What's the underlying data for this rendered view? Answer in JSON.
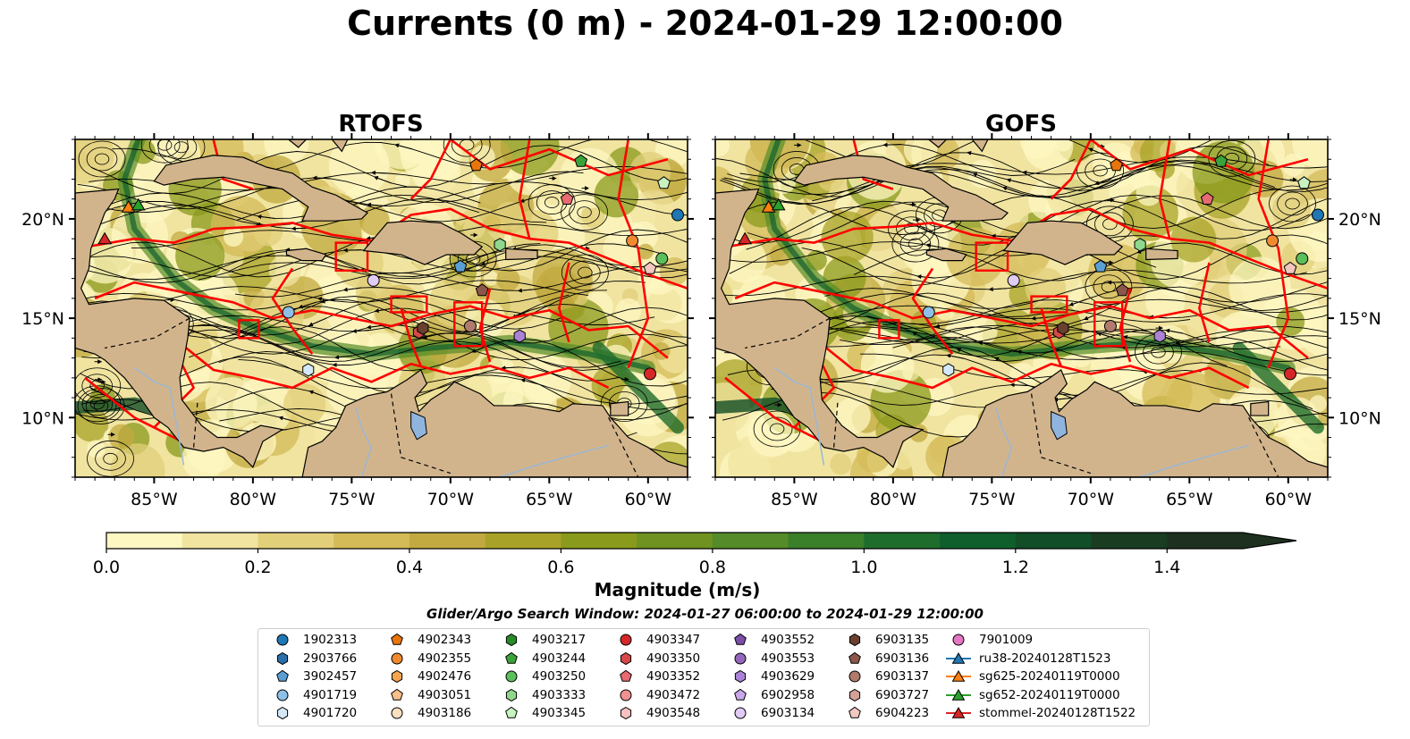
{
  "title": "Currents (0 m) - 2024-01-29 12:00:00",
  "panels": [
    {
      "title": "RTOFS"
    },
    {
      "title": "GOFS"
    }
  ],
  "colors": {
    "land": "#d2b48c",
    "boundary": "#ff0000",
    "streamline": "#000000",
    "lake": "#8fb4de"
  },
  "chart_data": {
    "type": "heatmap",
    "variable": "Current magnitude",
    "depth": "0 m",
    "time": "2024-01-29 12:00:00",
    "longitude_range": [
      -89,
      -58
    ],
    "latitude_range": [
      7,
      24
    ],
    "x_ticks": [
      "85°W",
      "80°W",
      "75°W",
      "70°W",
      "65°W",
      "60°W"
    ],
    "x_tick_values": [
      -85,
      -80,
      -75,
      -70,
      -65,
      -60
    ],
    "y_ticks": [
      "20°N",
      "15°N",
      "10°N"
    ],
    "y_tick_values": [
      20,
      15,
      10
    ],
    "colorbar": {
      "label": "Magnitude (m/s)",
      "range": [
        0.0,
        1.5
      ],
      "extend": "max",
      "ticks": [
        "0.0",
        "0.2",
        "0.4",
        "0.6",
        "0.8",
        "1.0",
        "1.2",
        "1.4"
      ],
      "tick_values": [
        0.0,
        0.2,
        0.4,
        0.6,
        0.8,
        1.0,
        1.2,
        1.4
      ],
      "levels": [
        0,
        0.1,
        0.2,
        0.3,
        0.4,
        0.5,
        0.6,
        0.7,
        0.8,
        0.9,
        1.0,
        1.1,
        1.2,
        1.3,
        1.4,
        1.5
      ],
      "colors": [
        "#fdf7c2",
        "#f0e4a0",
        "#e2cf7a",
        "#d4bb58",
        "#c2aa40",
        "#a8a328",
        "#8a9a1c",
        "#6f9220",
        "#558b28",
        "#3a7f2a",
        "#1f6d2c",
        "#0f5f2c",
        "#124e27",
        "#1a3d22",
        "#1e301f"
      ]
    },
    "search_window": "Glider/Argo Search Window: 2024-01-27 06:00:00 to 2024-01-29 12:00:00",
    "legend": [
      {
        "label": "1902313",
        "marker": "circle",
        "color": "#1f77b4",
        "lon": -58.5,
        "lat": 20.2
      },
      {
        "label": "2903766",
        "marker": "hexagon",
        "color": "#2b6fa8",
        "lon": null,
        "lat": null
      },
      {
        "label": "3902457",
        "marker": "pentagon",
        "color": "#5a9fd4",
        "lon": -69.5,
        "lat": 17.6
      },
      {
        "label": "4901719",
        "marker": "circle",
        "color": "#8ebfe8",
        "lon": -78.2,
        "lat": 15.3
      },
      {
        "label": "4901720",
        "marker": "hexagon",
        "color": "#d4e8f8",
        "lon": -77.2,
        "lat": 12.4
      },
      {
        "label": "4902343",
        "marker": "pentagon",
        "color": "#e8750c",
        "lon": -68.7,
        "lat": 22.7
      },
      {
        "label": "4902355",
        "marker": "circle",
        "color": "#f18a2e",
        "lon": -60.8,
        "lat": 18.9
      },
      {
        "label": "4902476",
        "marker": "hexagon",
        "color": "#f6a550",
        "lon": null,
        "lat": null
      },
      {
        "label": "4903051",
        "marker": "pentagon",
        "color": "#f7c08a",
        "lon": null,
        "lat": null
      },
      {
        "label": "4903186",
        "marker": "circle",
        "color": "#fde0c0",
        "lon": null,
        "lat": null
      },
      {
        "label": "4903217",
        "marker": "hexagon",
        "color": "#2a8a2a",
        "lon": null,
        "lat": null
      },
      {
        "label": "4903244",
        "marker": "pentagon",
        "color": "#3aa33a",
        "lon": -63.4,
        "lat": 22.9
      },
      {
        "label": "4903250",
        "marker": "circle",
        "color": "#5bbf5b",
        "lon": -59.3,
        "lat": 18.0
      },
      {
        "label": "4903333",
        "marker": "hexagon",
        "color": "#8ed88e",
        "lon": -67.5,
        "lat": 18.7
      },
      {
        "label": "4903345",
        "marker": "pentagon",
        "color": "#c8f2c0",
        "lon": -59.2,
        "lat": 21.8
      },
      {
        "label": "4903347",
        "marker": "circle",
        "color": "#d62728",
        "lon": -59.9,
        "lat": 12.2
      },
      {
        "label": "4903350",
        "marker": "hexagon",
        "color": "#d94848",
        "lon": -71.6,
        "lat": 14.3
      },
      {
        "label": "4903352",
        "marker": "pentagon",
        "color": "#e86a72",
        "lon": -64.1,
        "lat": 21.0
      },
      {
        "label": "4903472",
        "marker": "circle",
        "color": "#f09090",
        "lon": null,
        "lat": null
      },
      {
        "label": "4903548",
        "marker": "hexagon",
        "color": "#f8c0c0",
        "lon": null,
        "lat": null
      },
      {
        "label": "4903552",
        "marker": "pentagon",
        "color": "#7b4ea8",
        "lon": null,
        "lat": null
      },
      {
        "label": "4903553",
        "marker": "circle",
        "color": "#9467bd",
        "lon": null,
        "lat": null
      },
      {
        "label": "4903629",
        "marker": "hexagon",
        "color": "#ab82d6",
        "lon": -66.5,
        "lat": 14.1
      },
      {
        "label": "6902958",
        "marker": "pentagon",
        "color": "#c8a8e8",
        "lon": null,
        "lat": null
      },
      {
        "label": "6903134",
        "marker": "circle",
        "color": "#e0ccf4",
        "lon": -73.9,
        "lat": 16.9
      },
      {
        "label": "6903135",
        "marker": "hexagon",
        "color": "#6a4030",
        "lon": -71.4,
        "lat": 14.5
      },
      {
        "label": "6903136",
        "marker": "pentagon",
        "color": "#8c564b",
        "lon": -68.4,
        "lat": 16.4
      },
      {
        "label": "6903137",
        "marker": "circle",
        "color": "#b07a6c",
        "lon": -69.0,
        "lat": 14.6
      },
      {
        "label": "6903727",
        "marker": "hexagon",
        "color": "#d4a098",
        "lon": null,
        "lat": null
      },
      {
        "label": "6904223",
        "marker": "pentagon",
        "color": "#f2c8c0",
        "lon": -59.9,
        "lat": 17.5
      },
      {
        "label": "7901009",
        "marker": "circle",
        "color": "#e377c2",
        "lon": null,
        "lat": null
      },
      {
        "label": "ru38-20240128T1523",
        "marker": "triangle-line",
        "color": "#1f77b4",
        "lon": null,
        "lat": null
      },
      {
        "label": "sg625-20240119T0000",
        "marker": "triangle-line",
        "color": "#ff7f0e",
        "lon": -86.3,
        "lat": 20.6
      },
      {
        "label": "sg652-20240119T0000",
        "marker": "triangle-line",
        "color": "#2ca02c",
        "lon": -85.8,
        "lat": 20.7
      },
      {
        "label": "stommel-20240128T1522",
        "marker": "triangle-line",
        "color": "#d62728",
        "lon": -87.5,
        "lat": 19.0
      }
    ]
  }
}
